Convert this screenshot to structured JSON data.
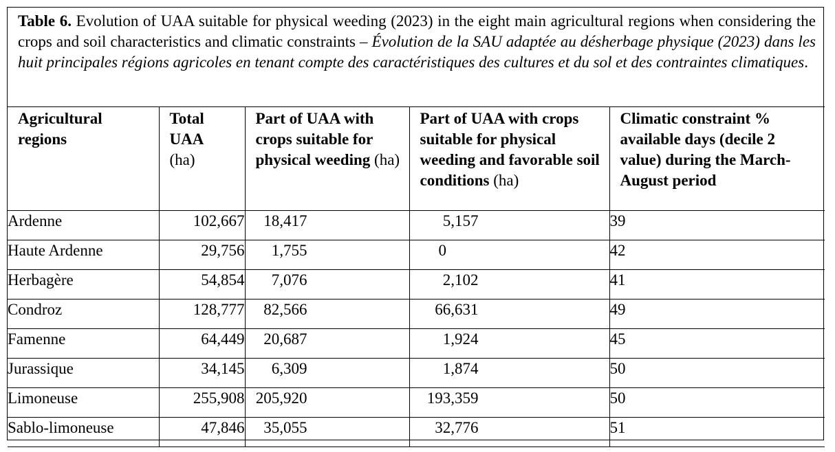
{
  "caption": {
    "lead": "Table 6.",
    "english": " Evolution of UAA suitable for physical weeding (2023) in the eight main agricultural regions when considering the crops and soil characteristics and climatic constraints – ",
    "french": "Évolution de la SAU adaptée au désherbage physique (2023) dans les huit principales régions agricoles en tenant compte des caractéristiques des cultures et du sol et des contraintes climatiques",
    "end": "."
  },
  "columns": [
    {
      "bold": "Agricultural regions",
      "normal": ""
    },
    {
      "bold": "Total UAA",
      "normal": "(ha)"
    },
    {
      "bold": "Part of UAA with crops suitable for physical weeding",
      "normal": "(ha)"
    },
    {
      "bold": "Part of UAA with crops suitable for physical weeding and favorable soil conditions",
      "normal": "(ha)"
    },
    {
      "bold": "Climatic constraint % available days (decile 2 value) during the March-August period",
      "normal": ""
    }
  ],
  "rows": [
    {
      "region": "Ardenne",
      "total": "102,667",
      "part": "18,417",
      "soil": "5,157",
      "climatic": "39"
    },
    {
      "region": "Haute Ardenne",
      "total": "29,756",
      "part": "1,755",
      "soil": "0",
      "climatic": "42"
    },
    {
      "region": "Herbagère",
      "total": "54,854",
      "part": "7,076",
      "soil": "2,102",
      "climatic": "41"
    },
    {
      "region": "Condroz",
      "total": "128,777",
      "part": "82,566",
      "soil": "66,631",
      "climatic": "49"
    },
    {
      "region": "Famenne",
      "total": "64,449",
      "part": "20,687",
      "soil": "1,924",
      "climatic": "45"
    },
    {
      "region": "Jurassique",
      "total": "34,145",
      "part": "6,309",
      "soil": "1,874",
      "climatic": "50"
    },
    {
      "region": "Limoneuse",
      "total": "255,908",
      "part": "205,920",
      "soil": "193,359",
      "climatic": "50"
    },
    {
      "region": "Sablo-limoneuse",
      "total": "47,846",
      "part": "35,055",
      "soil": "32,776",
      "climatic": "51"
    }
  ]
}
